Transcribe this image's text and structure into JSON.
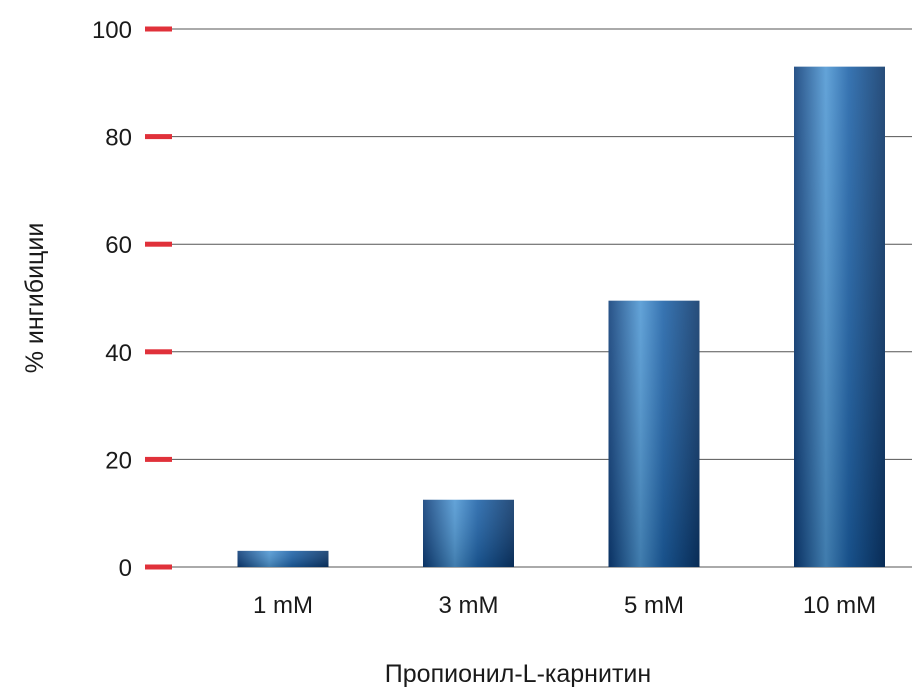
{
  "chart_data": {
    "type": "bar",
    "categories": [
      "1 mM",
      "3 mM",
      "5 mM",
      "10 mM"
    ],
    "values": [
      3,
      12.5,
      49.5,
      93
    ],
    "xlabel": "Пропионил-L-карнитин",
    "ylabel": "% ингибиции",
    "ylim": [
      0,
      100
    ],
    "yticks": [
      "0",
      "20",
      "40",
      "60",
      "80",
      "100"
    ],
    "grid": true,
    "colors": {
      "bar_dark": "#0c3c78",
      "bar_mid": "#1d62a8",
      "bar_light": "#4e97d3",
      "tick_mark": "#e0313a",
      "grid": "#555555"
    }
  }
}
